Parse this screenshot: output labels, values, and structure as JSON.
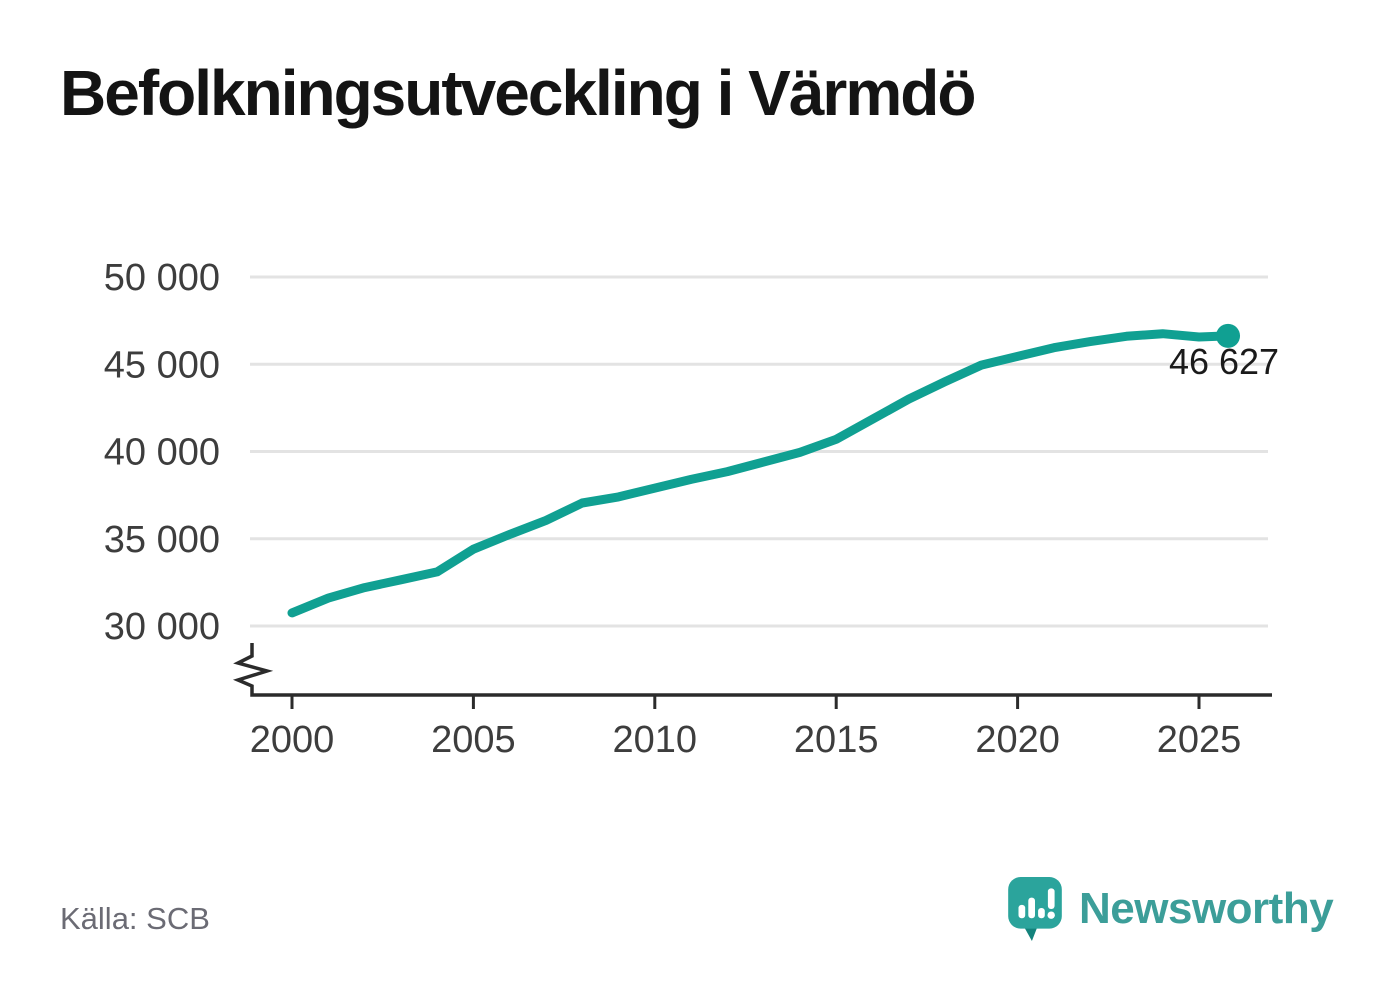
{
  "header": {
    "title": "Befolkningsutveckling i Värmdö"
  },
  "footer": {
    "source_label": "Källa: SCB",
    "brand_name": "Newsworthy"
  },
  "colors": {
    "line": "#10a092",
    "marker": "#10a092",
    "grid": "#e3e3e3",
    "axis": "#2b2b2b",
    "tick_label": "#3d3d3d",
    "title": "#141414",
    "source": "#6b6b74",
    "annotation": "#1a1a1a",
    "brand_text": "#3c9e99",
    "brand_mark": "#2ba49c",
    "brand_mark_dark": "#14837c"
  },
  "chart_data": {
    "type": "line",
    "title": "Befolkningsutveckling i Värmdö",
    "xlabel": "",
    "ylabel": "",
    "grid": "horizontal",
    "legend": "none",
    "axis_break_at_bottom": true,
    "xlim": [
      1999,
      2027
    ],
    "ylim": [
      29000,
      51000
    ],
    "x_ticks": [
      2000,
      2005,
      2010,
      2015,
      2020,
      2025
    ],
    "x_tick_labels": [
      "2000",
      "2005",
      "2010",
      "2015",
      "2020",
      "2025"
    ],
    "y_ticks": [
      30000,
      35000,
      40000,
      45000,
      50000
    ],
    "y_tick_labels": [
      "30 000",
      "35 000",
      "40 000",
      "45 000",
      "50 000"
    ],
    "x": [
      2000,
      2001,
      2002,
      2003,
      2004,
      2005,
      2006,
      2007,
      2008,
      2009,
      2010,
      2011,
      2012,
      2013,
      2014,
      2015,
      2016,
      2017,
      2018,
      2019,
      2020,
      2021,
      2022,
      2023,
      2024,
      2025,
      2025.8
    ],
    "y": [
      30750,
      31600,
      32200,
      32650,
      33100,
      34400,
      35250,
      36050,
      37050,
      37400,
      37900,
      38400,
      38850,
      39400,
      39950,
      40700,
      41850,
      43000,
      44000,
      44950,
      45450,
      45950,
      46300,
      46600,
      46750,
      46560,
      46627
    ],
    "end_annotation": {
      "label": "46 627",
      "value": 46627
    }
  }
}
